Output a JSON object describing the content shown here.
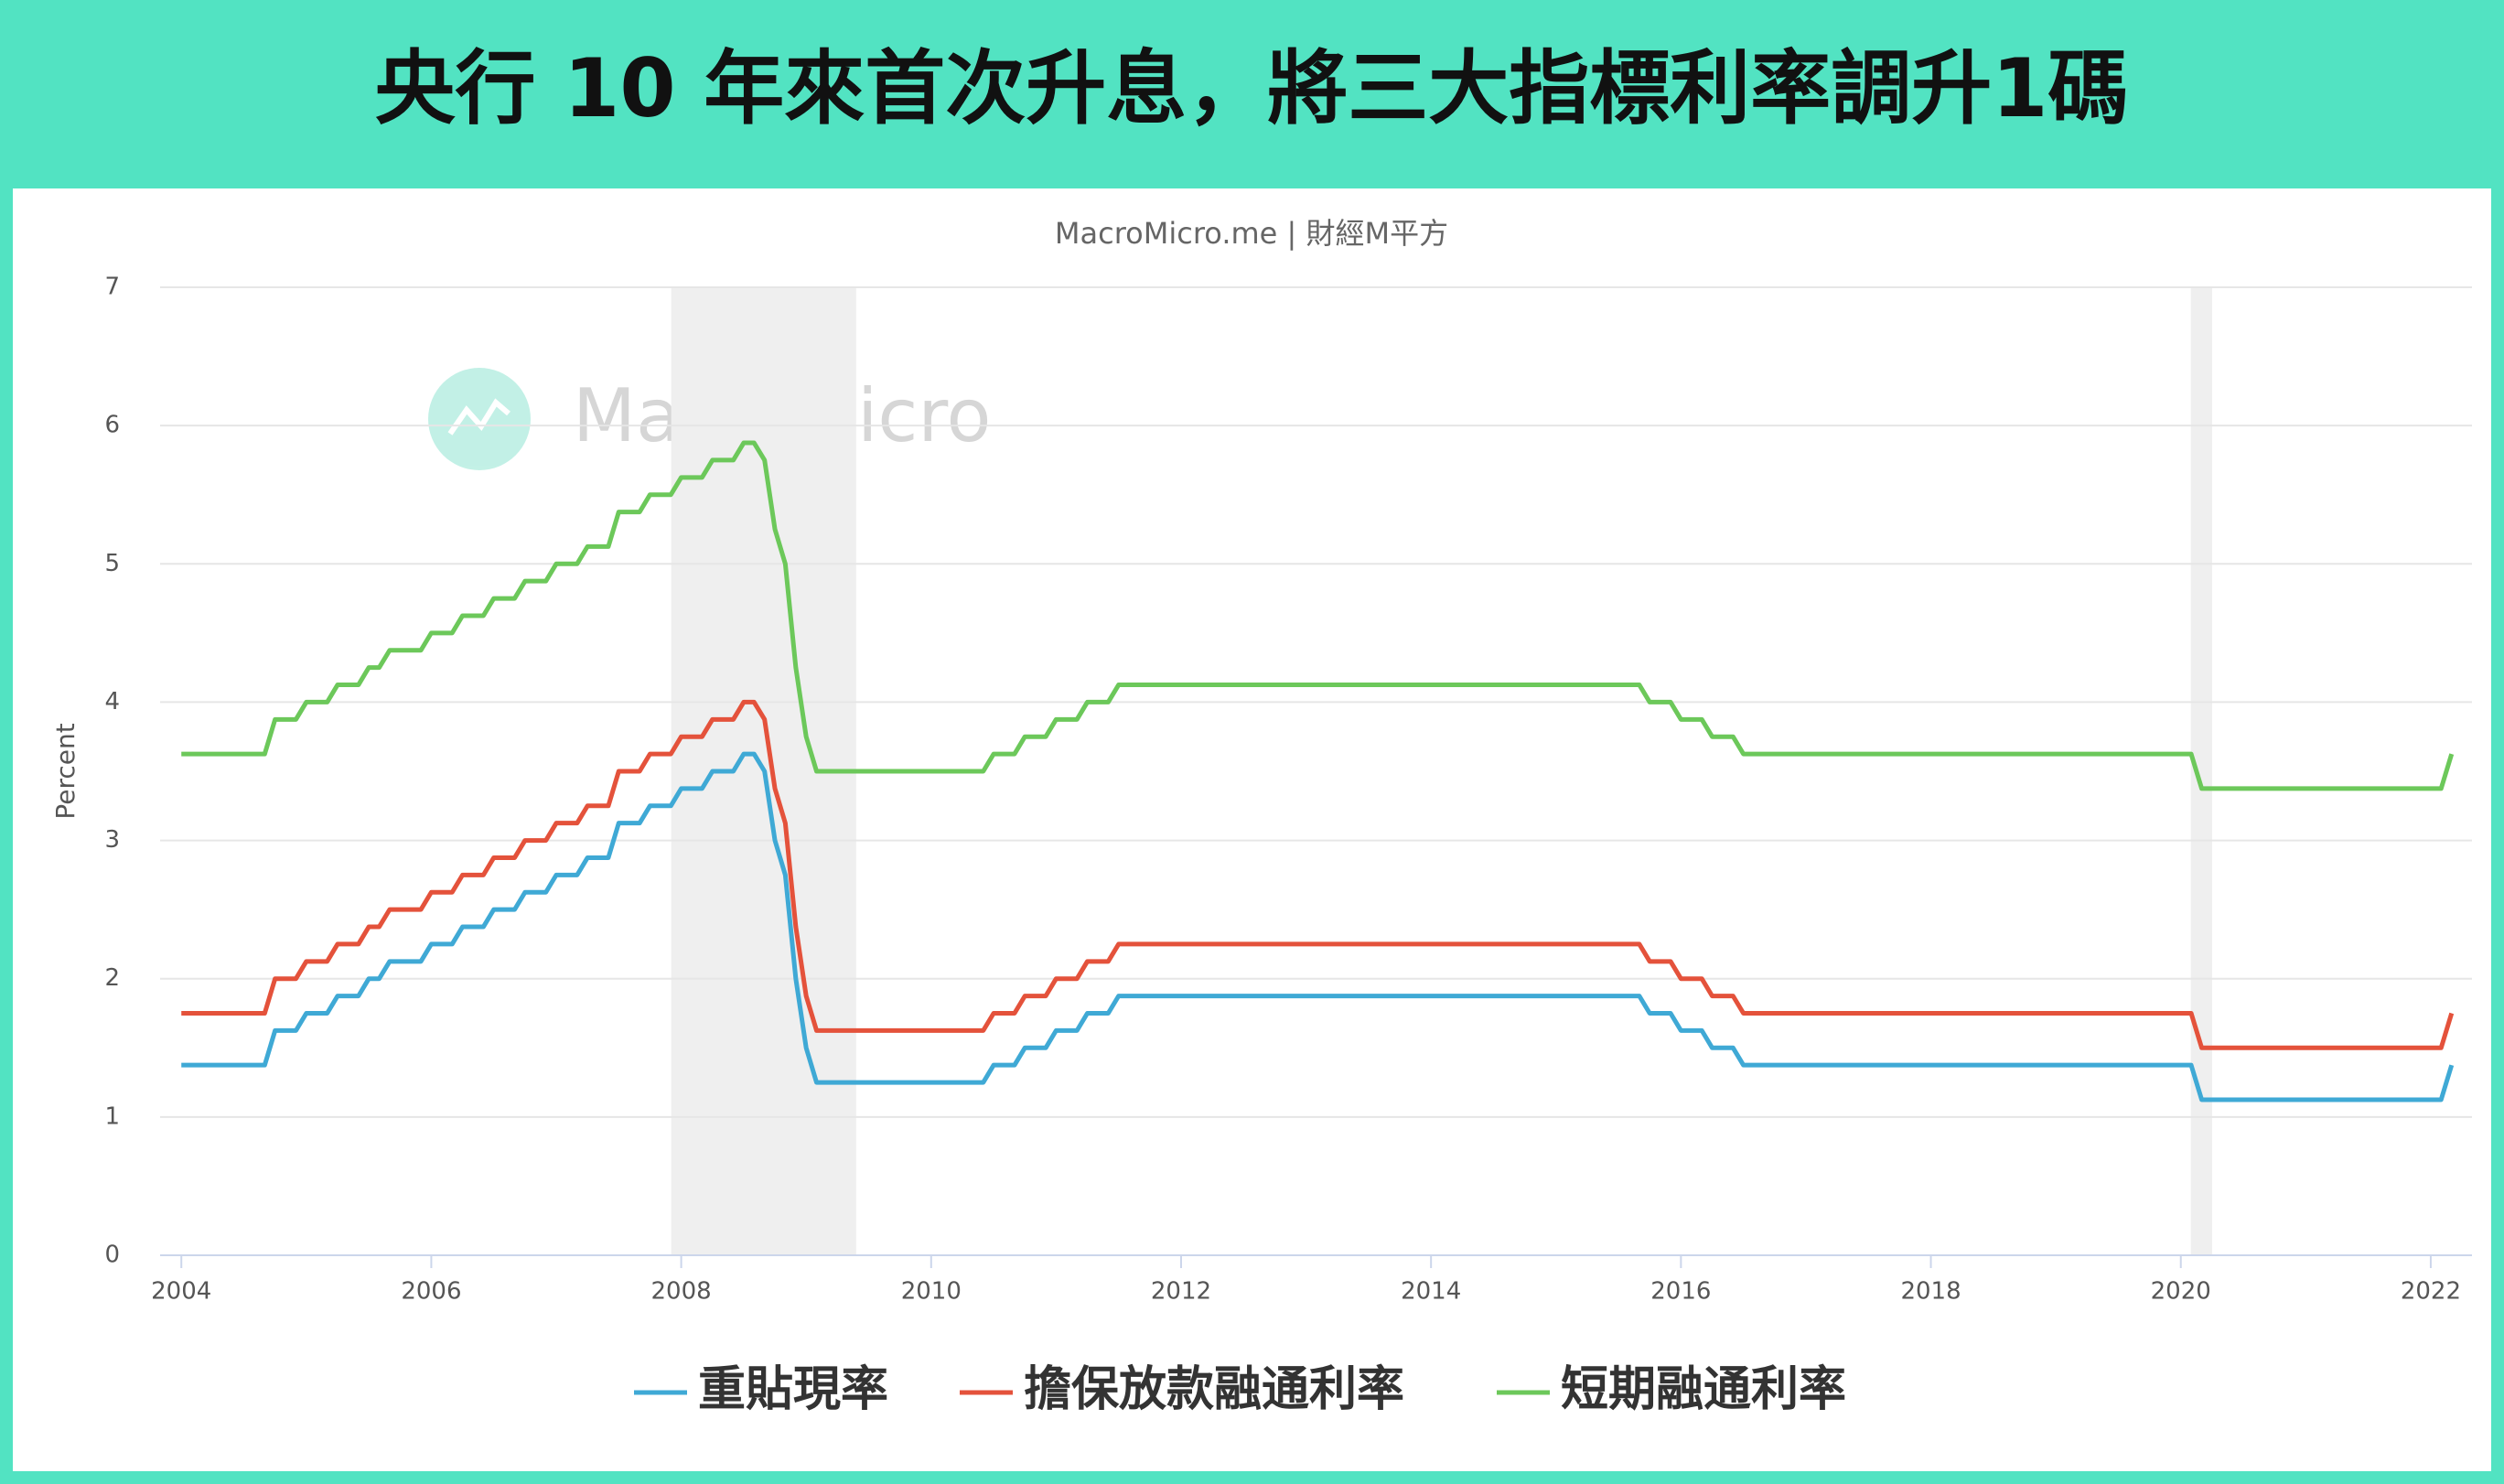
{
  "chart_data": {
    "type": "line",
    "title": "央行 10 年來首次升息，將三大指標利率調升1碼",
    "subtitle": "MacroMicro.me | 財經M平方",
    "watermark": "MacroMicro",
    "y_label": "Percent",
    "x": [
      2004,
      2004.667,
      2004.75,
      2004.917,
      2005,
      2005.167,
      2005.25,
      2005.417,
      2005.5,
      2005.583,
      2005.667,
      2005.917,
      2006,
      2006.167,
      2006.25,
      2006.417,
      2006.5,
      2006.667,
      2006.75,
      2006.917,
      2007,
      2007.167,
      2007.25,
      2007.417,
      2007.5,
      2007.667,
      2007.75,
      2007.917,
      2008,
      2008.167,
      2008.25,
      2008.417,
      2008.5,
      2008.583,
      2008.667,
      2008.75,
      2008.833,
      2008.917,
      2009,
      2009.083,
      2010.417,
      2010.5,
      2010.667,
      2010.75,
      2010.917,
      2011,
      2011.167,
      2011.25,
      2011.417,
      2011.5,
      2015.667,
      2015.75,
      2015.917,
      2016,
      2016.167,
      2016.25,
      2016.417,
      2016.5,
      2020.083,
      2020.167,
      2022.083,
      2022.167
    ],
    "series": [
      {
        "name": "重貼現率",
        "color": "#3fa9d5",
        "values": [
          1.375,
          1.375,
          1.625,
          1.625,
          1.75,
          1.75,
          1.875,
          1.875,
          2,
          2,
          2.125,
          2.125,
          2.25,
          2.25,
          2.375,
          2.375,
          2.5,
          2.5,
          2.625,
          2.625,
          2.75,
          2.75,
          2.875,
          2.875,
          3.125,
          3.125,
          3.25,
          3.25,
          3.375,
          3.375,
          3.5,
          3.5,
          3.625,
          3.625,
          3.5,
          3,
          2.75,
          2,
          1.5,
          1.25,
          1.25,
          1.375,
          1.375,
          1.5,
          1.5,
          1.625,
          1.625,
          1.75,
          1.75,
          1.875,
          1.875,
          1.75,
          1.75,
          1.625,
          1.625,
          1.5,
          1.5,
          1.375,
          1.375,
          1.125,
          1.125,
          1.375
        ]
      },
      {
        "name": "擔保放款融通利率",
        "color": "#e4523b",
        "values": [
          1.75,
          1.75,
          2,
          2,
          2.125,
          2.125,
          2.25,
          2.25,
          2.375,
          2.375,
          2.5,
          2.5,
          2.625,
          2.625,
          2.75,
          2.75,
          2.875,
          2.875,
          3,
          3,
          3.125,
          3.125,
          3.25,
          3.25,
          3.5,
          3.5,
          3.625,
          3.625,
          3.75,
          3.75,
          3.875,
          3.875,
          4,
          4,
          3.875,
          3.375,
          3.125,
          2.375,
          1.875,
          1.625,
          1.625,
          1.75,
          1.75,
          1.875,
          1.875,
          2,
          2,
          2.125,
          2.125,
          2.25,
          2.25,
          2.125,
          2.125,
          2,
          2,
          1.875,
          1.875,
          1.75,
          1.75,
          1.5,
          1.5,
          1.75
        ]
      },
      {
        "name": "短期融通利率",
        "color": "#6cc85a",
        "values": [
          3.625,
          3.625,
          3.875,
          3.875,
          4,
          4,
          4.125,
          4.125,
          4.25,
          4.25,
          4.375,
          4.375,
          4.5,
          4.5,
          4.625,
          4.625,
          4.75,
          4.75,
          4.875,
          4.875,
          5,
          5,
          5.125,
          5.125,
          5.375,
          5.375,
          5.5,
          5.5,
          5.625,
          5.625,
          5.75,
          5.75,
          5.875,
          5.875,
          5.75,
          5.25,
          5,
          4.25,
          3.75,
          3.5,
          3.5,
          3.625,
          3.625,
          3.75,
          3.75,
          3.875,
          3.875,
          4,
          4,
          4.125,
          4.125,
          4,
          4,
          3.875,
          3.875,
          3.75,
          3.75,
          3.625,
          3.625,
          3.375,
          3.375,
          3.625
        ]
      }
    ],
    "shaded_ranges": [
      [
        2007.92,
        2009.4
      ],
      [
        2020.08,
        2020.25
      ]
    ],
    "xlim": [
      2003.83,
      2022.33
    ],
    "xticks": [
      2004,
      2006,
      2008,
      2010,
      2012,
      2014,
      2016,
      2018,
      2020,
      2022
    ],
    "ylim": [
      0,
      7
    ],
    "yticks": [
      0,
      1,
      2,
      3,
      4,
      5,
      6,
      7
    ],
    "grid": true
  }
}
